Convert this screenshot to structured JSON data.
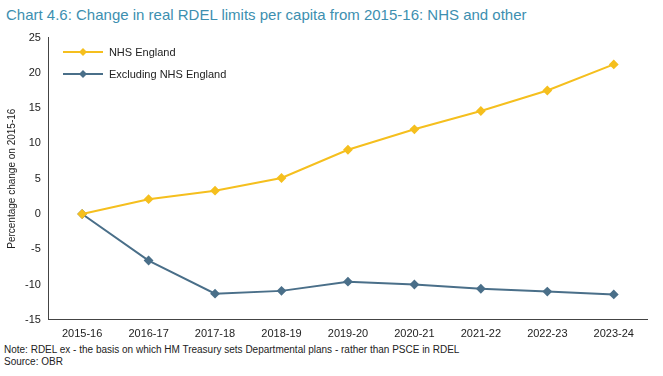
{
  "chart_data": {
    "type": "line",
    "title": "Chart 4.6: Change in real RDEL limits per capita from 2015-16: NHS and other",
    "y_label": "Percentage change on 2015-16",
    "categories": [
      "2015-16",
      "2016-17",
      "2017-18",
      "2018-19",
      "2019-20",
      "2020-21",
      "2021-22",
      "2022-23",
      "2023-24"
    ],
    "series": [
      {
        "name": "NHS England",
        "color": "#f5bf1e",
        "marker": "diamond",
        "line_style": "solid",
        "values": [
          0,
          2.1,
          3.3,
          5.1,
          9.1,
          12.0,
          14.6,
          17.5,
          21.2
        ]
      },
      {
        "name": "Excluding NHS England",
        "color": "#4a6f89",
        "marker": "diamond",
        "line_style": "solid",
        "values": [
          0,
          -6.6,
          -11.3,
          -10.9,
          -9.6,
          -10.0,
          -10.6,
          -11.0,
          -11.4
        ]
      }
    ],
    "ylim": [
      -15,
      25
    ],
    "yticks": [
      -15,
      -10,
      -5,
      0,
      5,
      10,
      15,
      20,
      25
    ],
    "grid": false,
    "legend": "upper left",
    "notes": [
      "Note: RDEL ex - the basis on which HM Treasury sets Departmental plans - rather than PSCE in RDEL",
      "Source: OBR"
    ]
  }
}
